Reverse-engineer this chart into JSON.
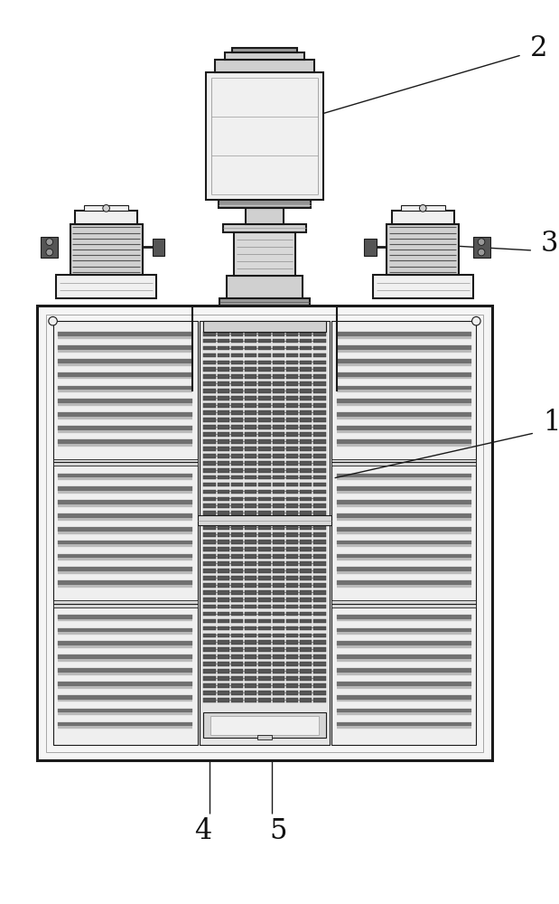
{
  "bg_color": "#ffffff",
  "line_color": "#1a1a1a",
  "light_gray": "#d0d0d0",
  "mid_gray": "#999999",
  "dark_gray": "#555555",
  "very_light_gray": "#f0f0f0",
  "panel_bg": "#e8e8e8",
  "slat_dark": "#707070",
  "slat_light": "#b8b8b8"
}
